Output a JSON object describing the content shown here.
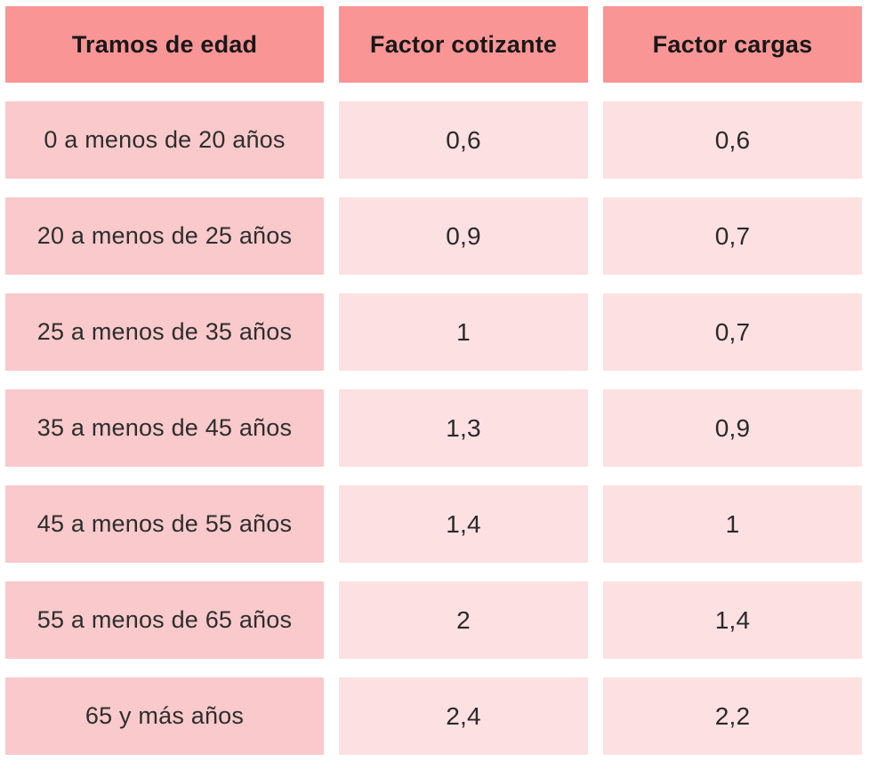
{
  "table": {
    "headers": [
      "Tramos de edad",
      "Factor cotizante",
      "Factor cargas"
    ],
    "rows": [
      {
        "tramo": "0 a menos de 20 años",
        "cotizante": "0,6",
        "cargas": "0,6"
      },
      {
        "tramo": "20 a menos de 25 años",
        "cotizante": "0,9",
        "cargas": "0,7"
      },
      {
        "tramo": "25 a menos de 35 años",
        "cotizante": "1",
        "cargas": "0,7"
      },
      {
        "tramo": "35 a menos de 45 años",
        "cotizante": "1,3",
        "cargas": "0,9"
      },
      {
        "tramo": "45 a menos de 55 años",
        "cotizante": "1,4",
        "cargas": "1"
      },
      {
        "tramo": "55 a menos de 65 años",
        "cotizante": "2",
        "cargas": "1,4"
      },
      {
        "tramo": "65 y más años",
        "cotizante": "2,4",
        "cargas": "2,2"
      }
    ]
  },
  "colors": {
    "header_bg": "#fa9595",
    "label_cell_bg": "#f9c9cb",
    "value_cell_bg": "#fde0e1",
    "text": "#2b2b2b",
    "background": "#ffffff"
  },
  "chart_data": {
    "type": "table",
    "columns": [
      "Tramos de edad",
      "Factor cotizante",
      "Factor cargas"
    ],
    "rows": [
      [
        "0 a menos de 20 años",
        "0,6",
        "0,6"
      ],
      [
        "20 a menos de 25 años",
        "0,9",
        "0,7"
      ],
      [
        "25 a menos de 35 años",
        "1",
        "0,7"
      ],
      [
        "35 a menos de 45 años",
        "1,3",
        "0,9"
      ],
      [
        "45 a menos de 55 años",
        "1,4",
        "1"
      ],
      [
        "55 a menos de 65 años",
        "2",
        "1,4"
      ],
      [
        "65 y más años",
        "2,4",
        "2,2"
      ]
    ],
    "numeric_rows": [
      {
        "tramo": "0 a menos de 20 años",
        "factor_cotizante": 0.6,
        "factor_cargas": 0.6
      },
      {
        "tramo": "20 a menos de 25 años",
        "factor_cotizante": 0.9,
        "factor_cargas": 0.7
      },
      {
        "tramo": "25 a menos de 35 años",
        "factor_cotizante": 1.0,
        "factor_cargas": 0.7
      },
      {
        "tramo": "35 a menos de 45 años",
        "factor_cotizante": 1.3,
        "factor_cargas": 0.9
      },
      {
        "tramo": "45 a menos de 55 años",
        "factor_cotizante": 1.4,
        "factor_cargas": 1.0
      },
      {
        "tramo": "55 a menos de 65 años",
        "factor_cotizante": 2.0,
        "factor_cargas": 1.4
      },
      {
        "tramo": "65 y más años",
        "factor_cotizante": 2.4,
        "factor_cargas": 2.2
      }
    ],
    "title": "",
    "notes": "decimal comma formatting as displayed"
  }
}
